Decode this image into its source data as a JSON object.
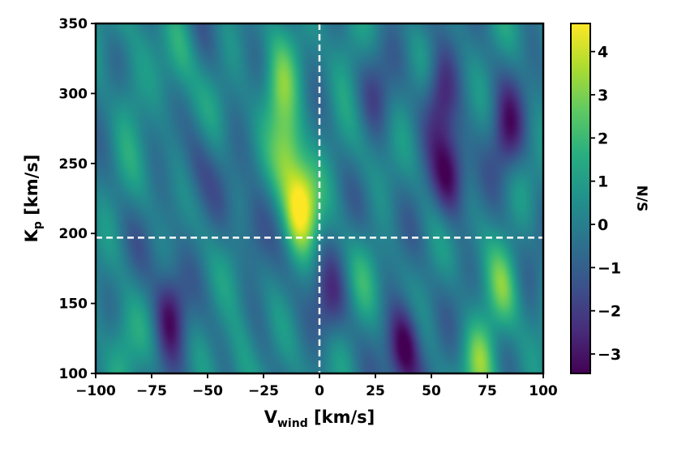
{
  "chart_data": {
    "type": "heatmap",
    "title": "",
    "xlabel_main": "V",
    "xlabel_sub": "wind",
    "xlabel_unit": " [km/s]",
    "ylabel_main": "K",
    "ylabel_sub": "p",
    "ylabel_unit": " [km/s]",
    "colorbar_label": "N/S",
    "colormap": "viridis",
    "xlim": [
      -100,
      100
    ],
    "ylim": [
      100,
      350
    ],
    "clim": [
      -3.45,
      4.65
    ],
    "xticks": [
      -100,
      -75,
      -50,
      -25,
      0,
      25,
      50,
      75,
      100
    ],
    "xtick_labels": [
      "−100",
      "−75",
      "−50",
      "−25",
      "0",
      "25",
      "50",
      "75",
      "100"
    ],
    "yticks": [
      100,
      150,
      200,
      250,
      300,
      350
    ],
    "ytick_labels": [
      "100",
      "150",
      "200",
      "250",
      "300",
      "350"
    ],
    "cticks": [
      -3,
      -2,
      -1,
      0,
      1,
      2,
      3,
      4
    ],
    "ctick_labels": [
      "−3",
      "−2",
      "−1",
      "0",
      "1",
      "2",
      "3",
      "4"
    ],
    "reference_lines": {
      "vertical_x": 0,
      "horizontal_y": 197,
      "style": "white dashed"
    },
    "features": [
      {
        "kind": "peak",
        "x": -8,
        "y": 220,
        "value": 4.6
      },
      {
        "kind": "ridge",
        "x": -14,
        "y": 260,
        "value": 3.4
      },
      {
        "kind": "ridge",
        "x": -18,
        "y": 300,
        "value": 2.7
      },
      {
        "kind": "trough",
        "x": -67,
        "y": 140,
        "value": -3.1
      },
      {
        "kind": "trough",
        "x": 38,
        "y": 120,
        "value": -3.4
      },
      {
        "kind": "trough",
        "x": 58,
        "y": 240,
        "value": -2.8
      },
      {
        "kind": "trough",
        "x": 54,
        "y": 300,
        "value": -2.6
      },
      {
        "kind": "trough",
        "x": 84,
        "y": 270,
        "value": -2.4
      },
      {
        "kind": "bump",
        "x": 82,
        "y": 160,
        "value": 2.6
      },
      {
        "kind": "bump",
        "x": 72,
        "y": 110,
        "value": 2.8
      },
      {
        "kind": "bump",
        "x": -88,
        "y": 120,
        "value": 1.8
      },
      {
        "kind": "bump",
        "x": -85,
        "y": 300,
        "value": 1.6
      },
      {
        "kind": "bump",
        "x": -62,
        "y": 330,
        "value": 1.8
      },
      {
        "kind": "bump",
        "x": -35,
        "y": 115,
        "value": 1.7
      },
      {
        "kind": "bump",
        "x": 20,
        "y": 170,
        "value": 1.2
      },
      {
        "kind": "bump",
        "x": 12,
        "y": 330,
        "value": 1.4
      },
      {
        "kind": "trough",
        "x": -30,
        "y": 200,
        "value": -1.2
      },
      {
        "kind": "trough",
        "x": 25,
        "y": 300,
        "value": -1.0
      },
      {
        "kind": "trough",
        "x": 5,
        "y": 150,
        "value": -1.5
      },
      {
        "kind": "trough",
        "x": -55,
        "y": 250,
        "value": -0.8
      }
    ]
  }
}
